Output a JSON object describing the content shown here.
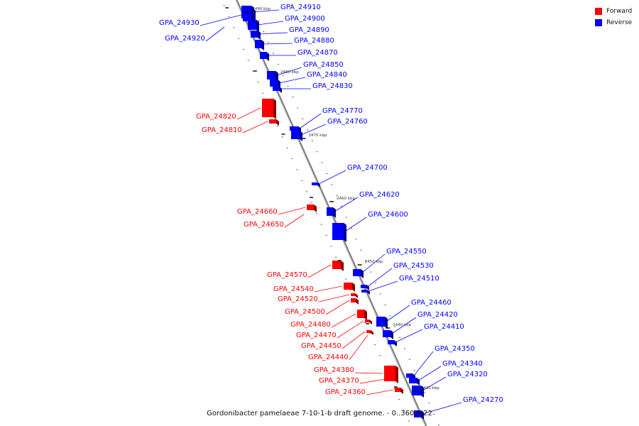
{
  "caption": "Gordonibacter pamelaeae 7-10-1-b draft genome. - 0..3608022",
  "legend": {
    "forward_label": "Forward",
    "reverse_label": "Reverse",
    "forward_color": "#ff0000",
    "reverse_color": "#0000ff"
  },
  "scale_labels": [
    {
      "text": "2490 kbp",
      "pos": 2490
    },
    {
      "text": "2480 kbp",
      "pos": 2480
    },
    {
      "text": "2470 kbp",
      "pos": 2470
    },
    {
      "text": "2460 kbp",
      "pos": 2460
    },
    {
      "text": "2450 kbp",
      "pos": 2450
    },
    {
      "text": "2440 kbp",
      "pos": 2440
    },
    {
      "text": "2430 kbp",
      "pos": 2430
    }
  ],
  "genes": [
    {
      "label": "GPA_24930",
      "strand": "reverse"
    },
    {
      "label": "GPA_24920",
      "strand": "reverse"
    },
    {
      "label": "GPA_24910",
      "strand": "reverse"
    },
    {
      "label": "GPA_24900",
      "strand": "reverse"
    },
    {
      "label": "GPA_24890",
      "strand": "reverse"
    },
    {
      "label": "GPA_24880",
      "strand": "reverse"
    },
    {
      "label": "GPA_24870",
      "strand": "reverse"
    },
    {
      "label": "GPA_24850",
      "strand": "reverse"
    },
    {
      "label": "GPA_24840",
      "strand": "reverse"
    },
    {
      "label": "GPA_24830",
      "strand": "reverse"
    },
    {
      "label": "GPA_24820",
      "strand": "forward"
    },
    {
      "label": "GPA_24810",
      "strand": "forward"
    },
    {
      "label": "GPA_24770",
      "strand": "reverse"
    },
    {
      "label": "GPA_24760",
      "strand": "reverse"
    },
    {
      "label": "GPA_24700",
      "strand": "reverse"
    },
    {
      "label": "GPA_24620",
      "strand": "reverse"
    },
    {
      "label": "GPA_24660",
      "strand": "forward"
    },
    {
      "label": "GPA_24650",
      "strand": "forward"
    },
    {
      "label": "GPA_24600",
      "strand": "reverse"
    },
    {
      "label": "GPA_24550",
      "strand": "reverse"
    },
    {
      "label": "GPA_24530",
      "strand": "reverse"
    },
    {
      "label": "GPA_24510",
      "strand": "reverse"
    },
    {
      "label": "GPA_24570",
      "strand": "forward"
    },
    {
      "label": "GPA_24540",
      "strand": "forward"
    },
    {
      "label": "GPA_24520",
      "strand": "forward"
    },
    {
      "label": "GPA_24500",
      "strand": "forward"
    },
    {
      "label": "GPA_24480",
      "strand": "forward"
    },
    {
      "label": "GPA_24470",
      "strand": "forward"
    },
    {
      "label": "GPA_24450",
      "strand": "forward"
    },
    {
      "label": "GPA_24440",
      "strand": "forward"
    },
    {
      "label": "GPA_24460",
      "strand": "reverse"
    },
    {
      "label": "GPA_24420",
      "strand": "reverse"
    },
    {
      "label": "GPA_24410",
      "strand": "reverse"
    },
    {
      "label": "GPA_24350",
      "strand": "reverse"
    },
    {
      "label": "GPA_24340",
      "strand": "reverse"
    },
    {
      "label": "GPA_24320",
      "strand": "reverse"
    },
    {
      "label": "GPA_24380",
      "strand": "forward"
    },
    {
      "label": "GPA_24370",
      "strand": "forward"
    },
    {
      "label": "GPA_24360",
      "strand": "forward"
    },
    {
      "label": "GPA_24270",
      "strand": "reverse"
    }
  ]
}
